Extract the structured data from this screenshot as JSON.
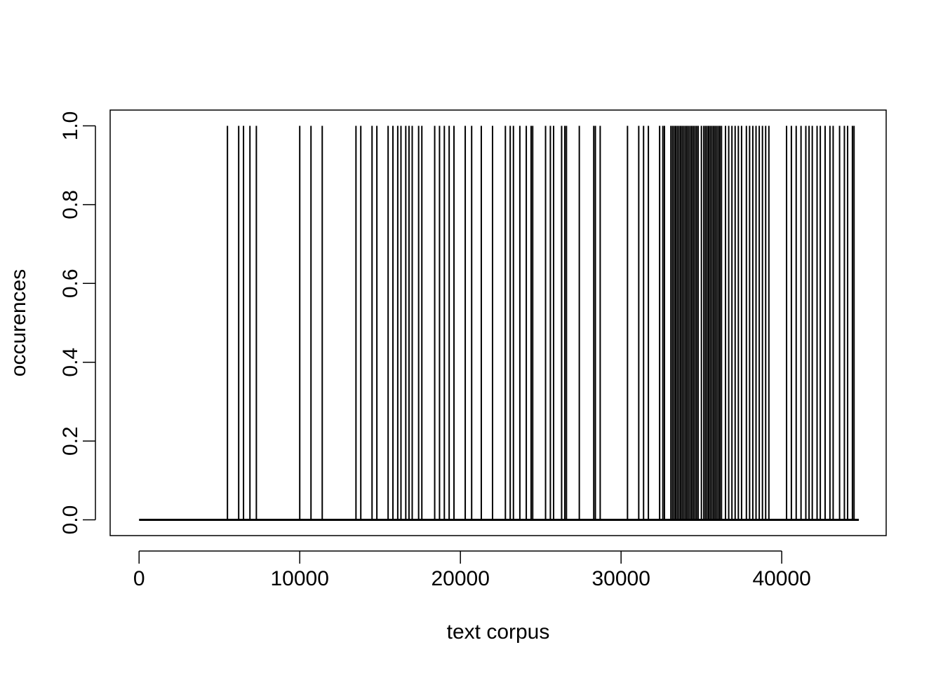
{
  "chart_data": {
    "type": "line",
    "plot_style": "spike",
    "xlabel": "text corpus",
    "ylabel": "occurences",
    "xlim": [
      -1800,
      46500
    ],
    "ylim": [
      -0.04,
      1.04
    ],
    "baseline_range": [
      0,
      44800
    ],
    "x_ticks": [
      0,
      10000,
      20000,
      30000,
      40000
    ],
    "x_tick_labels": [
      "0",
      "10000",
      "20000",
      "30000",
      "40000"
    ],
    "y_ticks": [
      0.0,
      0.2,
      0.4,
      0.6,
      0.8,
      1.0
    ],
    "y_tick_labels": [
      "0.0",
      "0.2",
      "0.4",
      "0.6",
      "0.8",
      "1.0"
    ],
    "grid": false,
    "legend": "none",
    "series": [
      {
        "x": [
          5500,
          6200,
          6500,
          6900,
          7300,
          10000,
          10700,
          11400,
          13500,
          13800,
          14500,
          14800,
          15500,
          15800,
          16100,
          16300,
          16600,
          16800,
          17000,
          17400,
          17600,
          18400,
          18700,
          19000,
          19300,
          19600,
          20300,
          20700,
          21300,
          22000,
          22800,
          23100,
          23300,
          23700,
          24100,
          24400,
          24500,
          25300,
          25600,
          25800,
          26300,
          26500,
          26600,
          27400,
          28300,
          28400,
          28700,
          30400,
          31100,
          31400,
          31700,
          32400,
          32600,
          32700,
          33100,
          33200,
          33300,
          33400,
          33500,
          33600,
          33700,
          33800,
          33900,
          34000,
          34100,
          34200,
          34300,
          34400,
          34500,
          34600,
          34700,
          34800,
          35000,
          35150,
          35250,
          35350,
          35450,
          35550,
          35650,
          35750,
          35850,
          35950,
          36050,
          36150,
          36250,
          36500,
          36700,
          36900,
          37100,
          37300,
          37500,
          37800,
          38000,
          38200,
          38400,
          38600,
          38800,
          39000,
          39200,
          40300,
          40600,
          40900,
          41200,
          41500,
          41700,
          41900,
          42200,
          42400,
          42700,
          43000,
          43200,
          43600,
          43900,
          44100,
          44400,
          44500
        ],
        "y": [
          1,
          1,
          1,
          1,
          1,
          1,
          1,
          1,
          1,
          1,
          1,
          1,
          1,
          1,
          1,
          1,
          1,
          1,
          1,
          1,
          1,
          1,
          1,
          1,
          1,
          1,
          1,
          1,
          1,
          1,
          1,
          1,
          1,
          1,
          1,
          1,
          1,
          1,
          1,
          1,
          1,
          1,
          1,
          1,
          1,
          1,
          1,
          1,
          1,
          1,
          1,
          1,
          1,
          1,
          1,
          1,
          1,
          1,
          1,
          1,
          1,
          1,
          1,
          1,
          1,
          1,
          1,
          1,
          1,
          1,
          1,
          1,
          1,
          1,
          1,
          1,
          1,
          1,
          1,
          1,
          1,
          1,
          1,
          1,
          1,
          1,
          1,
          1,
          1,
          1,
          1,
          1,
          1,
          1,
          1,
          1,
          1,
          1,
          1,
          1,
          1,
          1,
          1,
          1,
          1,
          1,
          1,
          1,
          1,
          1,
          1,
          1,
          1,
          1,
          1,
          1
        ]
      }
    ]
  }
}
